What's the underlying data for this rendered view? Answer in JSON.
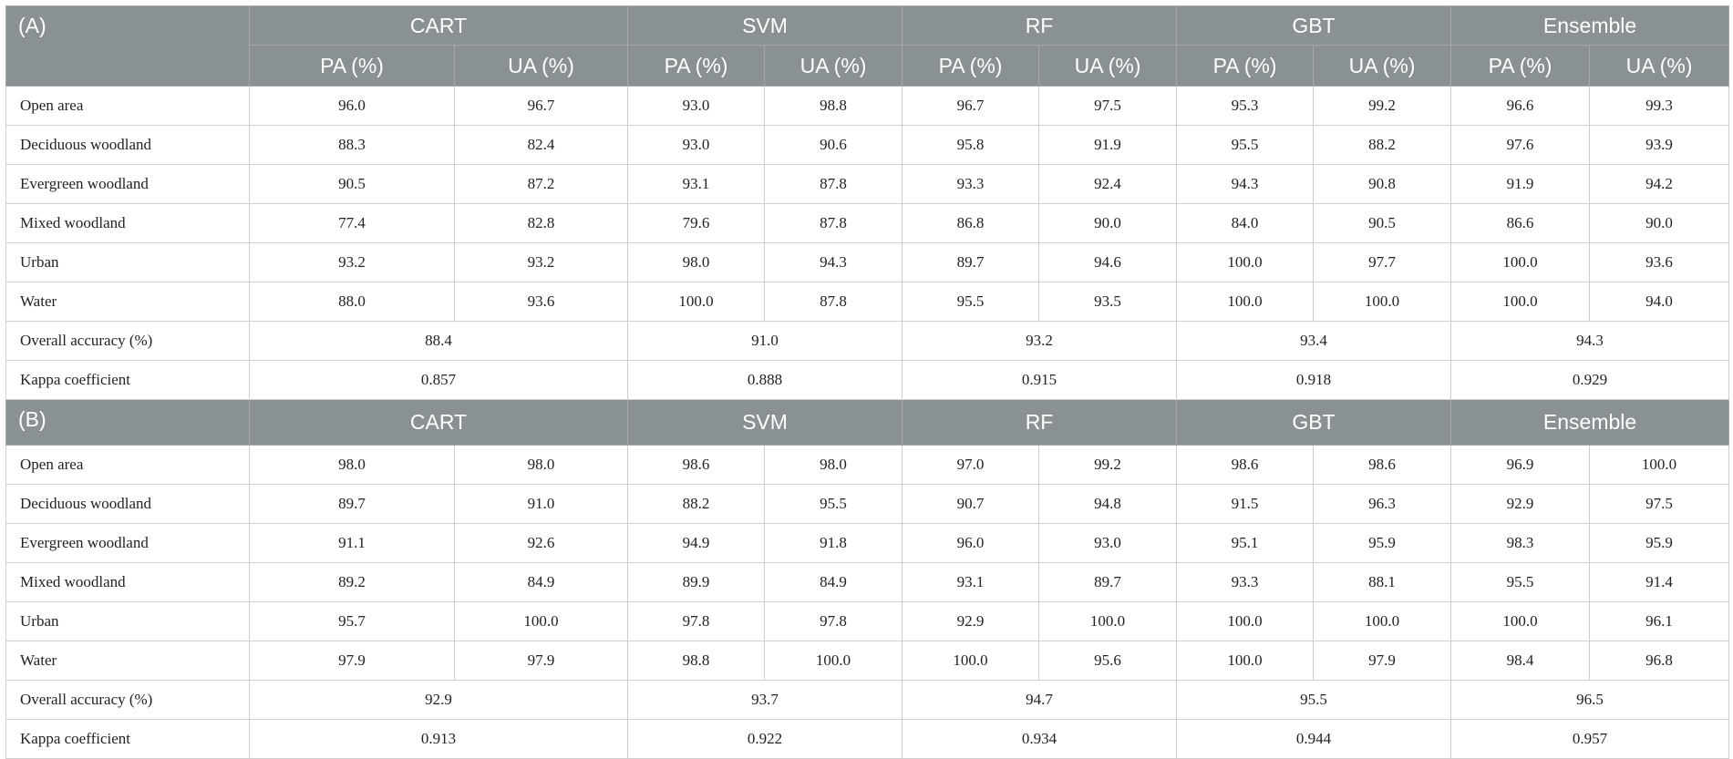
{
  "colors": {
    "header_bg": "#8a9193",
    "header_text": "#ffffff",
    "grid": "#cfcfcf"
  },
  "models": [
    "CART",
    "SVM",
    "RF",
    "GBT",
    "Ensemble"
  ],
  "sub_headers": {
    "pa": "PA (%)",
    "ua": "UA (%)"
  },
  "panel_a": {
    "label": "(A)",
    "rows": [
      {
        "label": "Open area",
        "values": [
          "96.0",
          "96.7",
          "93.0",
          "98.8",
          "96.7",
          "97.5",
          "95.3",
          "99.2",
          "96.6",
          "99.3"
        ]
      },
      {
        "label": "Deciduous woodland",
        "values": [
          "88.3",
          "82.4",
          "93.0",
          "90.6",
          "95.8",
          "91.9",
          "95.5",
          "88.2",
          "97.6",
          "93.9"
        ]
      },
      {
        "label": "Evergreen woodland",
        "values": [
          "90.5",
          "87.2",
          "93.1",
          "87.8",
          "93.3",
          "92.4",
          "94.3",
          "90.8",
          "91.9",
          "94.2"
        ]
      },
      {
        "label": "Mixed woodland",
        "values": [
          "77.4",
          "82.8",
          "79.6",
          "87.8",
          "86.8",
          "90.0",
          "84.0",
          "90.5",
          "86.6",
          "90.0"
        ]
      },
      {
        "label": "Urban",
        "values": [
          "93.2",
          "93.2",
          "98.0",
          "94.3",
          "89.7",
          "94.6",
          "100.0",
          "97.7",
          "100.0",
          "93.6"
        ]
      },
      {
        "label": "Water",
        "values": [
          "88.0",
          "93.6",
          "100.0",
          "87.8",
          "95.5",
          "93.5",
          "100.0",
          "100.0",
          "100.0",
          "94.0"
        ]
      }
    ],
    "summary": [
      {
        "label": "Overall accuracy (%)",
        "values": [
          "88.4",
          "91.0",
          "93.2",
          "93.4",
          "94.3"
        ]
      },
      {
        "label": "Kappa coefficient",
        "values": [
          "0.857",
          "0.888",
          "0.915",
          "0.918",
          "0.929"
        ]
      }
    ]
  },
  "panel_b": {
    "label": "(B)",
    "rows": [
      {
        "label": "Open area",
        "values": [
          "98.0",
          "98.0",
          "98.6",
          "98.0",
          "97.0",
          "99.2",
          "98.6",
          "98.6",
          "96.9",
          "100.0"
        ]
      },
      {
        "label": "Deciduous woodland",
        "values": [
          "89.7",
          "91.0",
          "88.2",
          "95.5",
          "90.7",
          "94.8",
          "91.5",
          "96.3",
          "92.9",
          "97.5"
        ]
      },
      {
        "label": "Evergreen woodland",
        "values": [
          "91.1",
          "92.6",
          "94.9",
          "91.8",
          "96.0",
          "93.0",
          "95.1",
          "95.9",
          "98.3",
          "95.9"
        ]
      },
      {
        "label": "Mixed woodland",
        "values": [
          "89.2",
          "84.9",
          "89.9",
          "84.9",
          "93.1",
          "89.7",
          "93.3",
          "88.1",
          "95.5",
          "91.4"
        ]
      },
      {
        "label": "Urban",
        "values": [
          "95.7",
          "100.0",
          "97.8",
          "97.8",
          "92.9",
          "100.0",
          "100.0",
          "100.0",
          "100.0",
          "96.1"
        ]
      },
      {
        "label": "Water",
        "values": [
          "97.9",
          "97.9",
          "98.8",
          "100.0",
          "100.0",
          "95.6",
          "100.0",
          "97.9",
          "98.4",
          "96.8"
        ]
      }
    ],
    "summary": [
      {
        "label": "Overall accuracy (%)",
        "values": [
          "92.9",
          "93.7",
          "94.7",
          "95.5",
          "96.5"
        ]
      },
      {
        "label": "Kappa coefficient",
        "values": [
          "0.913",
          "0.922",
          "0.934",
          "0.944",
          "0.957"
        ]
      }
    ]
  }
}
